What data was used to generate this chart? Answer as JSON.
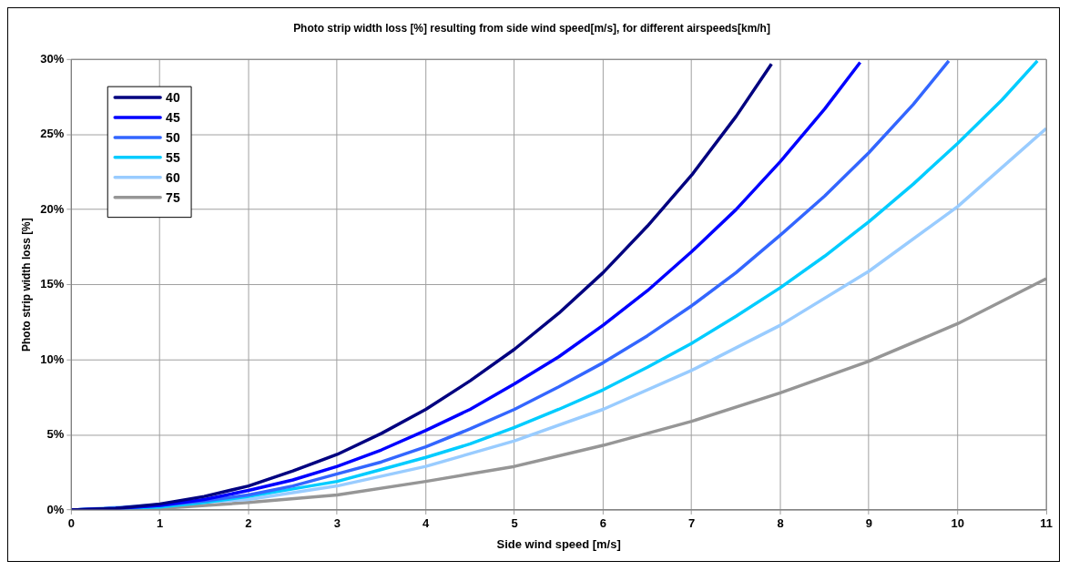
{
  "chart_data": {
    "type": "line",
    "title": "Photo strip width loss [%] resulting from side wind speed[m/s], for different airspeeds[km/h]",
    "xlabel": "Side wind speed [m/s]",
    "ylabel": "Photo strip width loss [%]",
    "xlim": [
      0,
      11
    ],
    "xticks": [
      0,
      1,
      2,
      3,
      4,
      5,
      6,
      7,
      8,
      9,
      10,
      11
    ],
    "ylim": [
      0,
      30
    ],
    "yticks": [
      {
        "value": 0,
        "label": "0%"
      },
      {
        "value": 5,
        "label": "5%"
      },
      {
        "value": 10,
        "label": "10%"
      },
      {
        "value": 15,
        "label": "15%"
      },
      {
        "value": 20,
        "label": "20%"
      },
      {
        "value": 25,
        "label": "25%"
      },
      {
        "value": 30,
        "label": "30%"
      }
    ],
    "grid": true,
    "legend": "top left",
    "marker": "none",
    "line_style": "solid",
    "series": [
      {
        "name": "40",
        "color": "#000080",
        "x": [
          0,
          0.5,
          1,
          1.5,
          2,
          2.5,
          3,
          3.5,
          4,
          4.5,
          5,
          5.5,
          6,
          6.5,
          7,
          7.5,
          7.9
        ],
        "values": [
          0,
          0.1,
          0.4,
          0.9,
          1.6,
          2.6,
          3.7,
          5.1,
          6.7,
          8.6,
          10.7,
          13.1,
          15.8,
          18.9,
          22.3,
          26.2,
          29.7
        ]
      },
      {
        "name": "45",
        "color": "#0000ff",
        "x": [
          0,
          0.5,
          1,
          1.5,
          2,
          2.5,
          3,
          3.5,
          4,
          4.5,
          5,
          5.5,
          6,
          6.5,
          7,
          7.5,
          8,
          8.5,
          8.9
        ],
        "values": [
          0,
          0.1,
          0.3,
          0.7,
          1.3,
          2,
          2.9,
          4,
          5.3,
          6.7,
          8.4,
          10.2,
          12.3,
          14.6,
          17.2,
          20,
          23.2,
          26.7,
          29.8
        ]
      },
      {
        "name": "50",
        "color": "#3366ff",
        "x": [
          0,
          0.5,
          1,
          1.5,
          2,
          2.5,
          3,
          3.5,
          4,
          4.5,
          5,
          5.5,
          6,
          6.5,
          7,
          7.5,
          8,
          8.5,
          9,
          9.5,
          9.9
        ],
        "values": [
          0,
          0.1,
          0.3,
          0.6,
          1,
          1.6,
          2.4,
          3.2,
          4.2,
          5.4,
          6.7,
          8.2,
          9.8,
          11.6,
          13.6,
          15.8,
          18.3,
          20.9,
          23.8,
          27,
          29.9
        ]
      },
      {
        "name": "55",
        "color": "#00ccff",
        "x": [
          0,
          0.5,
          1,
          1.5,
          2,
          2.5,
          3,
          3.5,
          4,
          4.5,
          5,
          5.5,
          6,
          6.5,
          7,
          7.5,
          8,
          8.5,
          9,
          9.5,
          10,
          10.5,
          10.9
        ],
        "values": [
          0,
          0.1,
          0.2,
          0.5,
          0.9,
          1.4,
          1.9,
          2.7,
          3.5,
          4.4,
          5.5,
          6.7,
          8,
          9.5,
          11.1,
          12.9,
          14.8,
          16.9,
          19.2,
          21.7,
          24.4,
          27.3,
          29.9
        ]
      },
      {
        "name": "60",
        "color": "#99ccff",
        "x": [
          0,
          2,
          3,
          4,
          5,
          6,
          7,
          8,
          9,
          10,
          11
        ],
        "values": [
          0,
          0.7,
          1.6,
          2.9,
          4.6,
          6.7,
          9.3,
          12.3,
          15.9,
          20.2,
          25.4
        ]
      },
      {
        "name": "75",
        "color": "#969696",
        "x": [
          0,
          1,
          2,
          3,
          4,
          5,
          6,
          7,
          8,
          9,
          10,
          11
        ],
        "values": [
          0,
          0.1,
          0.5,
          1,
          1.9,
          2.9,
          4.3,
          5.9,
          7.8,
          9.9,
          12.4,
          15.4
        ]
      }
    ]
  }
}
